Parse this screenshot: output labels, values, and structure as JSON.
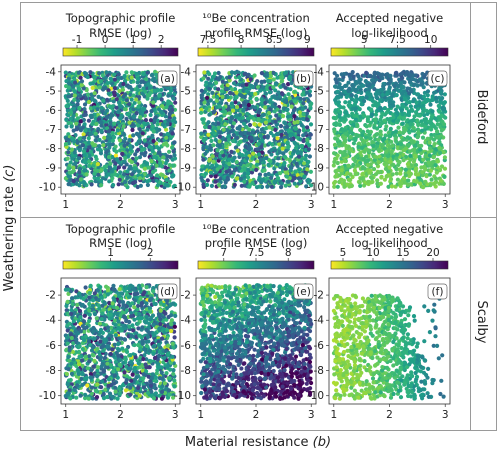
{
  "figure": {
    "ylabel_main": "Weathering rate",
    "ylabel_var": "(c)",
    "xlabel_main": "Material resistance",
    "xlabel_var": "(b)",
    "row_labels": [
      "Bideford",
      "Scalby"
    ]
  },
  "colormap": {
    "name": "viridis_r",
    "stops": [
      "#fde725",
      "#b5de2b",
      "#6ece58",
      "#35b779",
      "#1f9e89",
      "#26828e",
      "#31688e",
      "#3e4989",
      "#482878",
      "#440154"
    ]
  },
  "chart_data": [
    {
      "type": "scatter",
      "panel": "(a)",
      "row": "Bideford",
      "title": "Topographic profile\nRMSE (log)",
      "x_ticks": [
        "1",
        "2",
        "3"
      ],
      "y_ticks": [
        "-4",
        "-5",
        "-6",
        "-7",
        "-8",
        "-9",
        "-10"
      ],
      "xlim": [
        0.95,
        3.05
      ],
      "ylim": [
        -10.25,
        -3.75
      ],
      "color_range": [
        -1.5,
        2.6
      ],
      "color_ticks": [
        {
          "v": -1,
          "t": "-1"
        },
        {
          "v": 0,
          "t": "0"
        },
        {
          "v": 1,
          "t": "1"
        },
        {
          "v": 2,
          "t": "2"
        }
      ],
      "n_points": 1500,
      "pattern": "uniform"
    },
    {
      "type": "scatter",
      "panel": "(b)",
      "row": "Bideford",
      "title": "¹⁰Be concentration\nprofile RMSE (log)",
      "x_ticks": [
        "1",
        "2",
        "3"
      ],
      "y_ticks": [
        "-4",
        "-5",
        "-6",
        "-7",
        "-8",
        "-9",
        "-10"
      ],
      "xlim": [
        0.95,
        3.05
      ],
      "ylim": [
        -10.25,
        -3.75
      ],
      "color_range": [
        7.35,
        9.1
      ],
      "color_ticks": [
        {
          "v": 7.5,
          "t": "7.5"
        },
        {
          "v": 8,
          "t": "8"
        },
        {
          "v": 8.5,
          "t": "8.5"
        },
        {
          "v": 9,
          "t": "9"
        }
      ],
      "n_points": 1500,
      "pattern": "uniform"
    },
    {
      "type": "scatter",
      "panel": "(c)",
      "row": "Bideford",
      "title": "Accepted negative\nlog-likelihood",
      "x_ticks": [
        "1",
        "2",
        "3"
      ],
      "y_ticks": [
        "-4",
        "-5",
        "-6",
        "-7",
        "-8",
        "-9",
        "-10"
      ],
      "xlim": [
        0.95,
        3.05
      ],
      "ylim": [
        -10.25,
        -3.75
      ],
      "color_range": [
        2.5,
        11.3
      ],
      "color_ticks": [
        {
          "v": 5,
          "t": "5"
        },
        {
          "v": 7.5,
          "t": "7.5"
        },
        {
          "v": 10,
          "t": "10"
        }
      ],
      "n_points": 1400,
      "pattern": "likelihood_top"
    },
    {
      "type": "scatter",
      "panel": "(d)",
      "row": "Scalby",
      "title": "Topographic profile\nRMSE (log)",
      "x_ticks": [
        "1",
        "2",
        "3"
      ],
      "y_ticks": [
        "-2",
        "-4",
        "-6",
        "-8",
        "-10"
      ],
      "xlim": [
        0.95,
        3.05
      ],
      "ylim": [
        -10.5,
        -0.8
      ],
      "color_range": [
        -0.2,
        2.7
      ],
      "color_ticks": [
        {
          "v": 1,
          "t": "1"
        },
        {
          "v": 2,
          "t": "2"
        }
      ],
      "n_points": 1500,
      "pattern": "uniform"
    },
    {
      "type": "scatter",
      "panel": "(e)",
      "row": "Scalby",
      "title": "¹⁰Be concentration\nprofile RMSE (log)",
      "x_ticks": [
        "1",
        "2",
        "3"
      ],
      "y_ticks": [
        "-2",
        "-4",
        "-6",
        "-8",
        "-10"
      ],
      "xlim": [
        0.95,
        3.05
      ],
      "ylim": [
        -10.5,
        -0.8
      ],
      "color_range": [
        6.6,
        8.4
      ],
      "color_ticks": [
        {
          "v": 7,
          "t": "7"
        },
        {
          "v": 7.5,
          "t": "7.5"
        },
        {
          "v": 8,
          "t": "8"
        }
      ],
      "n_points": 1700,
      "pattern": "be_gradient"
    },
    {
      "type": "scatter",
      "panel": "(f)",
      "row": "Scalby",
      "title": "Accepted negative\nlog-likelihood",
      "x_ticks": [
        "1",
        "2",
        "3"
      ],
      "y_ticks": [
        "-2",
        "-4",
        "-6",
        "-8",
        "-10"
      ],
      "xlim": [
        0.95,
        3.05
      ],
      "ylim": [
        -10.5,
        -0.8
      ],
      "color_range": [
        3,
        22.5
      ],
      "color_ticks": [
        {
          "v": 5,
          "t": "5"
        },
        {
          "v": 10,
          "t": "10"
        },
        {
          "v": 15,
          "t": "15"
        },
        {
          "v": 20,
          "t": "20"
        }
      ],
      "n_points": 1200,
      "pattern": "likelihood_wedge"
    }
  ]
}
